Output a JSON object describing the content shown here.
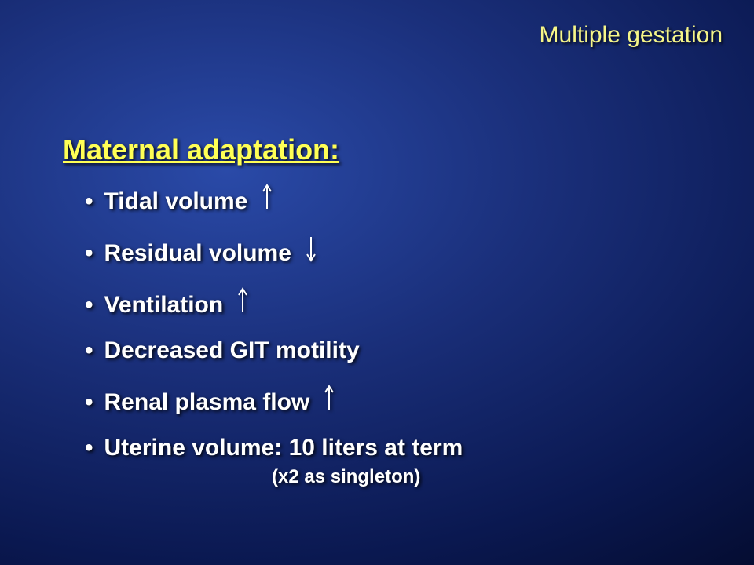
{
  "header": "Multiple gestation",
  "heading": "Maternal adaptation:",
  "bullets": [
    {
      "text": "Tidal volume",
      "arrow": "up"
    },
    {
      "text": "Residual volume",
      "arrow": "down"
    },
    {
      "text": "Ventilation",
      "arrow": "up"
    },
    {
      "text": "Decreased GIT motility",
      "arrow": null
    },
    {
      "text": "Renal plasma flow",
      "arrow": "up"
    },
    {
      "text": "Uterine volume: 10 liters at term",
      "arrow": null
    }
  ],
  "subnote": "(x2 as singleton)",
  "arrow_color": "#ffffff",
  "arrow_height": 34,
  "arrow_width": 14
}
